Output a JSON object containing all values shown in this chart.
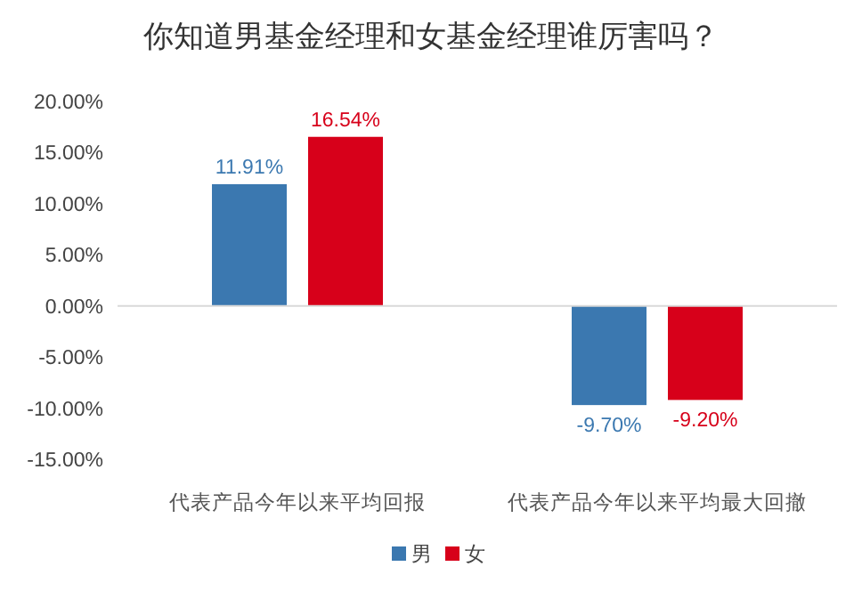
{
  "chart_data": {
    "type": "bar",
    "title": "你知道男基金经理和女基金经理谁厉害吗？",
    "categories": [
      "代表产品今年以来平均回报",
      "代表产品今年以来平均最大回撤"
    ],
    "series": [
      {
        "name": "男",
        "color": "#3b78b0",
        "values": [
          11.91,
          -9.7
        ],
        "value_labels": [
          "11.91%",
          "-9.70%"
        ]
      },
      {
        "name": "女",
        "color": "#d7001a",
        "values": [
          16.54,
          -9.2
        ],
        "value_labels": [
          "16.54%",
          "-9.20%"
        ]
      }
    ],
    "ylim": [
      -15,
      20
    ],
    "yticks": [
      {
        "value": 20,
        "label": "20.00%"
      },
      {
        "value": 15,
        "label": "15.00%"
      },
      {
        "value": 10,
        "label": "10.00%"
      },
      {
        "value": 5,
        "label": "5.00%"
      },
      {
        "value": 0,
        "label": "0.00%"
      },
      {
        "value": -5,
        "label": "-5.00%"
      },
      {
        "value": -10,
        "label": "-10.00%"
      },
      {
        "value": -15,
        "label": "-15.00%"
      }
    ],
    "grid": false,
    "legend": "bottom",
    "ref_lines": [
      {
        "axis": "y",
        "value": 0,
        "color": "#d9d9d9"
      }
    ]
  }
}
